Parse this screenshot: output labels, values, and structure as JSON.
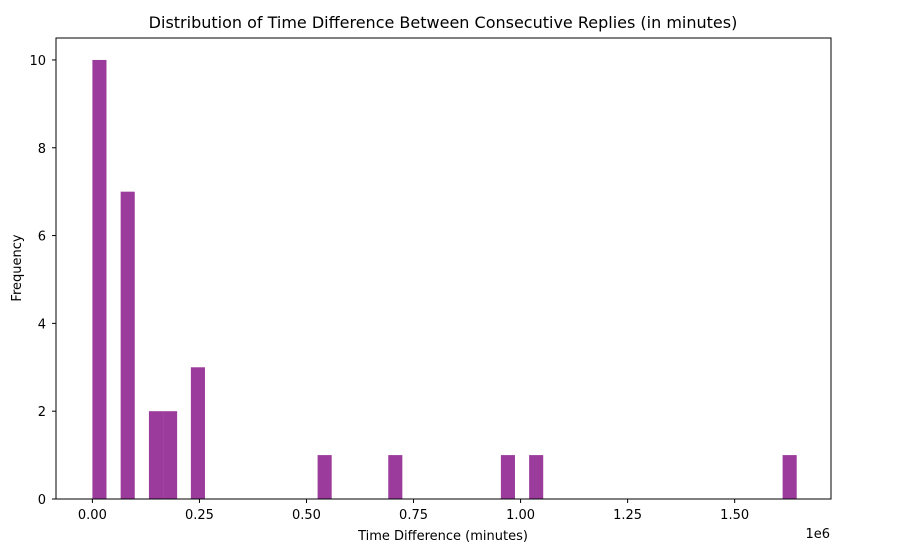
{
  "chart_data": {
    "type": "bar",
    "title": "Distribution of Time Difference Between Consecutive Replies (in minutes)",
    "xlabel": "Time Difference (minutes)",
    "ylabel": "Frequency",
    "x_offset_label": "1e6",
    "xlim": [
      -0.085,
      1.725
    ],
    "ylim": [
      0,
      10.5
    ],
    "bin_width": 0.0329,
    "bar_color": "#9b3b9b",
    "x_ticks": [
      0,
      0.25,
      0.5,
      0.75,
      1.0,
      1.25,
      1.5
    ],
    "x_tick_labels": [
      "0.00",
      "0.25",
      "0.50",
      "0.75",
      "1.00",
      "1.25",
      "1.50"
    ],
    "y_ticks": [
      0,
      2,
      4,
      6,
      8,
      10
    ],
    "y_tick_labels": [
      "0",
      "2",
      "4",
      "6",
      "8",
      "10"
    ],
    "grid": false,
    "legend": "none",
    "bars": [
      {
        "x": 0.0,
        "value": 10
      },
      {
        "x": 0.066,
        "value": 7
      },
      {
        "x": 0.132,
        "value": 2
      },
      {
        "x": 0.165,
        "value": 2
      },
      {
        "x": 0.23,
        "value": 3
      },
      {
        "x": 0.526,
        "value": 1
      },
      {
        "x": 0.691,
        "value": 1
      },
      {
        "x": 0.954,
        "value": 1
      },
      {
        "x": 1.02,
        "value": 1
      },
      {
        "x": 1.612,
        "value": 1
      }
    ]
  }
}
